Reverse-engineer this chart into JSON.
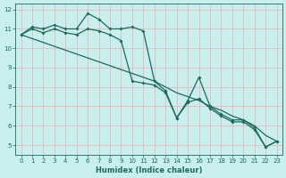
{
  "x": [
    0,
    1,
    2,
    3,
    4,
    5,
    6,
    7,
    8,
    9,
    10,
    11,
    12,
    13,
    14,
    15,
    16,
    17,
    18,
    19,
    20,
    21,
    22,
    23
  ],
  "y_zigzag": [
    10.7,
    11.1,
    11.0,
    11.2,
    11.0,
    11.0,
    11.8,
    11.5,
    11.0,
    11.0,
    11.1,
    10.9,
    8.3,
    7.8,
    6.4,
    7.3,
    8.5,
    7.0,
    6.6,
    6.3,
    6.3,
    5.9,
    4.9,
    5.2
  ],
  "y_mid": [
    10.7,
    11.0,
    10.8,
    11.0,
    10.8,
    10.7,
    11.0,
    10.9,
    10.7,
    10.4,
    8.3,
    8.2,
    8.1,
    7.7,
    6.4,
    7.2,
    7.4,
    6.9,
    6.5,
    6.2,
    6.2,
    5.8,
    4.9,
    5.2
  ],
  "y_trend": [
    10.7,
    10.5,
    10.3,
    10.1,
    9.9,
    9.7,
    9.5,
    9.3,
    9.1,
    8.9,
    8.7,
    8.5,
    8.3,
    8.0,
    7.7,
    7.5,
    7.3,
    7.0,
    6.8,
    6.5,
    6.3,
    6.0,
    5.5,
    5.2
  ],
  "xlabel": "Humidex (Indice chaleur)",
  "ylim": [
    4.5,
    12.3
  ],
  "xlim": [
    -0.5,
    23.5
  ],
  "yticks": [
    5,
    6,
    7,
    8,
    9,
    10,
    11,
    12
  ],
  "xticks": [
    0,
    1,
    2,
    3,
    4,
    5,
    6,
    7,
    8,
    9,
    10,
    11,
    12,
    13,
    14,
    15,
    16,
    17,
    18,
    19,
    20,
    21,
    22,
    23
  ],
  "line_color": "#1a6b5e",
  "bg_color": "#c8eeee",
  "grid_color": "#d0d0c8",
  "marker": "D",
  "marker_size": 2.0,
  "line_width": 0.9
}
